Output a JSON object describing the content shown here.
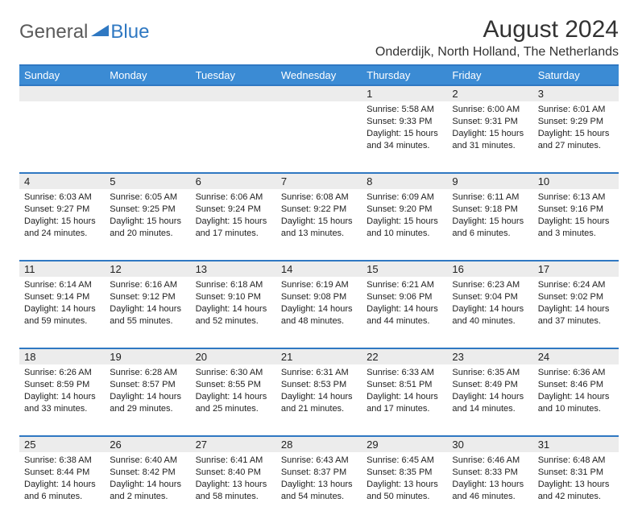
{
  "logo": {
    "general": "General",
    "blue": "Blue"
  },
  "title": "August 2024",
  "location": "Onderdijk, North Holland, The Netherlands",
  "colors": {
    "header_bg": "#3b8bd4",
    "rule": "#2f78c2",
    "daynum_bg": "#ececec",
    "text": "#222222",
    "logo_gray": "#5a5a5a",
    "logo_blue": "#2f78c2",
    "background": "#ffffff"
  },
  "weekdays": [
    "Sunday",
    "Monday",
    "Tuesday",
    "Wednesday",
    "Thursday",
    "Friday",
    "Saturday"
  ],
  "weeks": [
    [
      null,
      null,
      null,
      null,
      {
        "n": "1",
        "sunrise": "5:58 AM",
        "sunset": "9:33 PM",
        "dl": "15 hours and 34 minutes."
      },
      {
        "n": "2",
        "sunrise": "6:00 AM",
        "sunset": "9:31 PM",
        "dl": "15 hours and 31 minutes."
      },
      {
        "n": "3",
        "sunrise": "6:01 AM",
        "sunset": "9:29 PM",
        "dl": "15 hours and 27 minutes."
      }
    ],
    [
      {
        "n": "4",
        "sunrise": "6:03 AM",
        "sunset": "9:27 PM",
        "dl": "15 hours and 24 minutes."
      },
      {
        "n": "5",
        "sunrise": "6:05 AM",
        "sunset": "9:25 PM",
        "dl": "15 hours and 20 minutes."
      },
      {
        "n": "6",
        "sunrise": "6:06 AM",
        "sunset": "9:24 PM",
        "dl": "15 hours and 17 minutes."
      },
      {
        "n": "7",
        "sunrise": "6:08 AM",
        "sunset": "9:22 PM",
        "dl": "15 hours and 13 minutes."
      },
      {
        "n": "8",
        "sunrise": "6:09 AM",
        "sunset": "9:20 PM",
        "dl": "15 hours and 10 minutes."
      },
      {
        "n": "9",
        "sunrise": "6:11 AM",
        "sunset": "9:18 PM",
        "dl": "15 hours and 6 minutes."
      },
      {
        "n": "10",
        "sunrise": "6:13 AM",
        "sunset": "9:16 PM",
        "dl": "15 hours and 3 minutes."
      }
    ],
    [
      {
        "n": "11",
        "sunrise": "6:14 AM",
        "sunset": "9:14 PM",
        "dl": "14 hours and 59 minutes."
      },
      {
        "n": "12",
        "sunrise": "6:16 AM",
        "sunset": "9:12 PM",
        "dl": "14 hours and 55 minutes."
      },
      {
        "n": "13",
        "sunrise": "6:18 AM",
        "sunset": "9:10 PM",
        "dl": "14 hours and 52 minutes."
      },
      {
        "n": "14",
        "sunrise": "6:19 AM",
        "sunset": "9:08 PM",
        "dl": "14 hours and 48 minutes."
      },
      {
        "n": "15",
        "sunrise": "6:21 AM",
        "sunset": "9:06 PM",
        "dl": "14 hours and 44 minutes."
      },
      {
        "n": "16",
        "sunrise": "6:23 AM",
        "sunset": "9:04 PM",
        "dl": "14 hours and 40 minutes."
      },
      {
        "n": "17",
        "sunrise": "6:24 AM",
        "sunset": "9:02 PM",
        "dl": "14 hours and 37 minutes."
      }
    ],
    [
      {
        "n": "18",
        "sunrise": "6:26 AM",
        "sunset": "8:59 PM",
        "dl": "14 hours and 33 minutes."
      },
      {
        "n": "19",
        "sunrise": "6:28 AM",
        "sunset": "8:57 PM",
        "dl": "14 hours and 29 minutes."
      },
      {
        "n": "20",
        "sunrise": "6:30 AM",
        "sunset": "8:55 PM",
        "dl": "14 hours and 25 minutes."
      },
      {
        "n": "21",
        "sunrise": "6:31 AM",
        "sunset": "8:53 PM",
        "dl": "14 hours and 21 minutes."
      },
      {
        "n": "22",
        "sunrise": "6:33 AM",
        "sunset": "8:51 PM",
        "dl": "14 hours and 17 minutes."
      },
      {
        "n": "23",
        "sunrise": "6:35 AM",
        "sunset": "8:49 PM",
        "dl": "14 hours and 14 minutes."
      },
      {
        "n": "24",
        "sunrise": "6:36 AM",
        "sunset": "8:46 PM",
        "dl": "14 hours and 10 minutes."
      }
    ],
    [
      {
        "n": "25",
        "sunrise": "6:38 AM",
        "sunset": "8:44 PM",
        "dl": "14 hours and 6 minutes."
      },
      {
        "n": "26",
        "sunrise": "6:40 AM",
        "sunset": "8:42 PM",
        "dl": "14 hours and 2 minutes."
      },
      {
        "n": "27",
        "sunrise": "6:41 AM",
        "sunset": "8:40 PM",
        "dl": "13 hours and 58 minutes."
      },
      {
        "n": "28",
        "sunrise": "6:43 AM",
        "sunset": "8:37 PM",
        "dl": "13 hours and 54 minutes."
      },
      {
        "n": "29",
        "sunrise": "6:45 AM",
        "sunset": "8:35 PM",
        "dl": "13 hours and 50 minutes."
      },
      {
        "n": "30",
        "sunrise": "6:46 AM",
        "sunset": "8:33 PM",
        "dl": "13 hours and 46 minutes."
      },
      {
        "n": "31",
        "sunrise": "6:48 AM",
        "sunset": "8:31 PM",
        "dl": "13 hours and 42 minutes."
      }
    ]
  ],
  "labels": {
    "sunrise": "Sunrise:",
    "sunset": "Sunset:",
    "daylight": "Daylight:"
  }
}
